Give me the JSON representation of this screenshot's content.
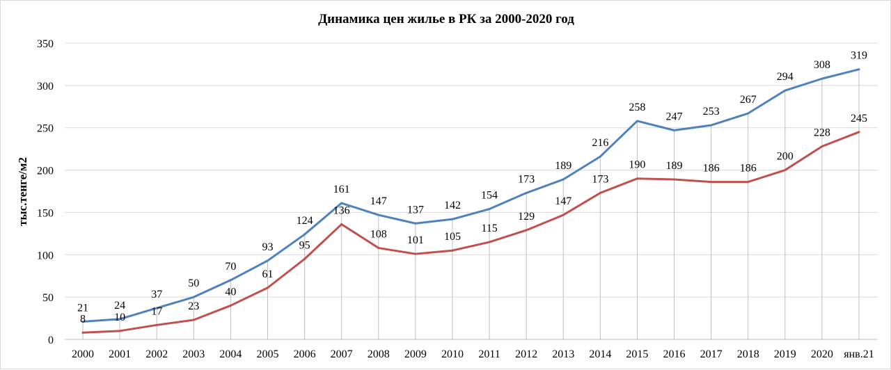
{
  "chart_data": {
    "type": "line",
    "title": "Динамика цен  жилье в РК за 2000-2020 год",
    "xlabel": "",
    "ylabel": "тыс.тенге/м2",
    "ylim": [
      0,
      350
    ],
    "yticks": [
      0,
      50,
      100,
      150,
      200,
      250,
      300,
      350
    ],
    "grid": true,
    "categories": [
      "2000",
      "2001",
      "2002",
      "2003",
      "2004",
      "2005",
      "2006",
      "2007",
      "2008",
      "2009",
      "2010",
      "2011",
      "2012",
      "2013",
      "2014",
      "2015",
      "2016",
      "2017",
      "2018",
      "2019",
      "2020",
      "янв.21"
    ],
    "series": [
      {
        "color": "#4f81bd",
        "values": [
          21,
          24,
          37,
          50,
          70,
          93,
          124,
          161,
          147,
          137,
          142,
          154,
          173,
          189,
          216,
          258,
          247,
          253,
          267,
          294,
          308,
          319
        ]
      },
      {
        "color": "#c0504d",
        "values": [
          8,
          10,
          17,
          23,
          40,
          61,
          95,
          136,
          108,
          101,
          105,
          115,
          129,
          147,
          173,
          190,
          189,
          186,
          186,
          200,
          228,
          245
        ]
      }
    ]
  }
}
